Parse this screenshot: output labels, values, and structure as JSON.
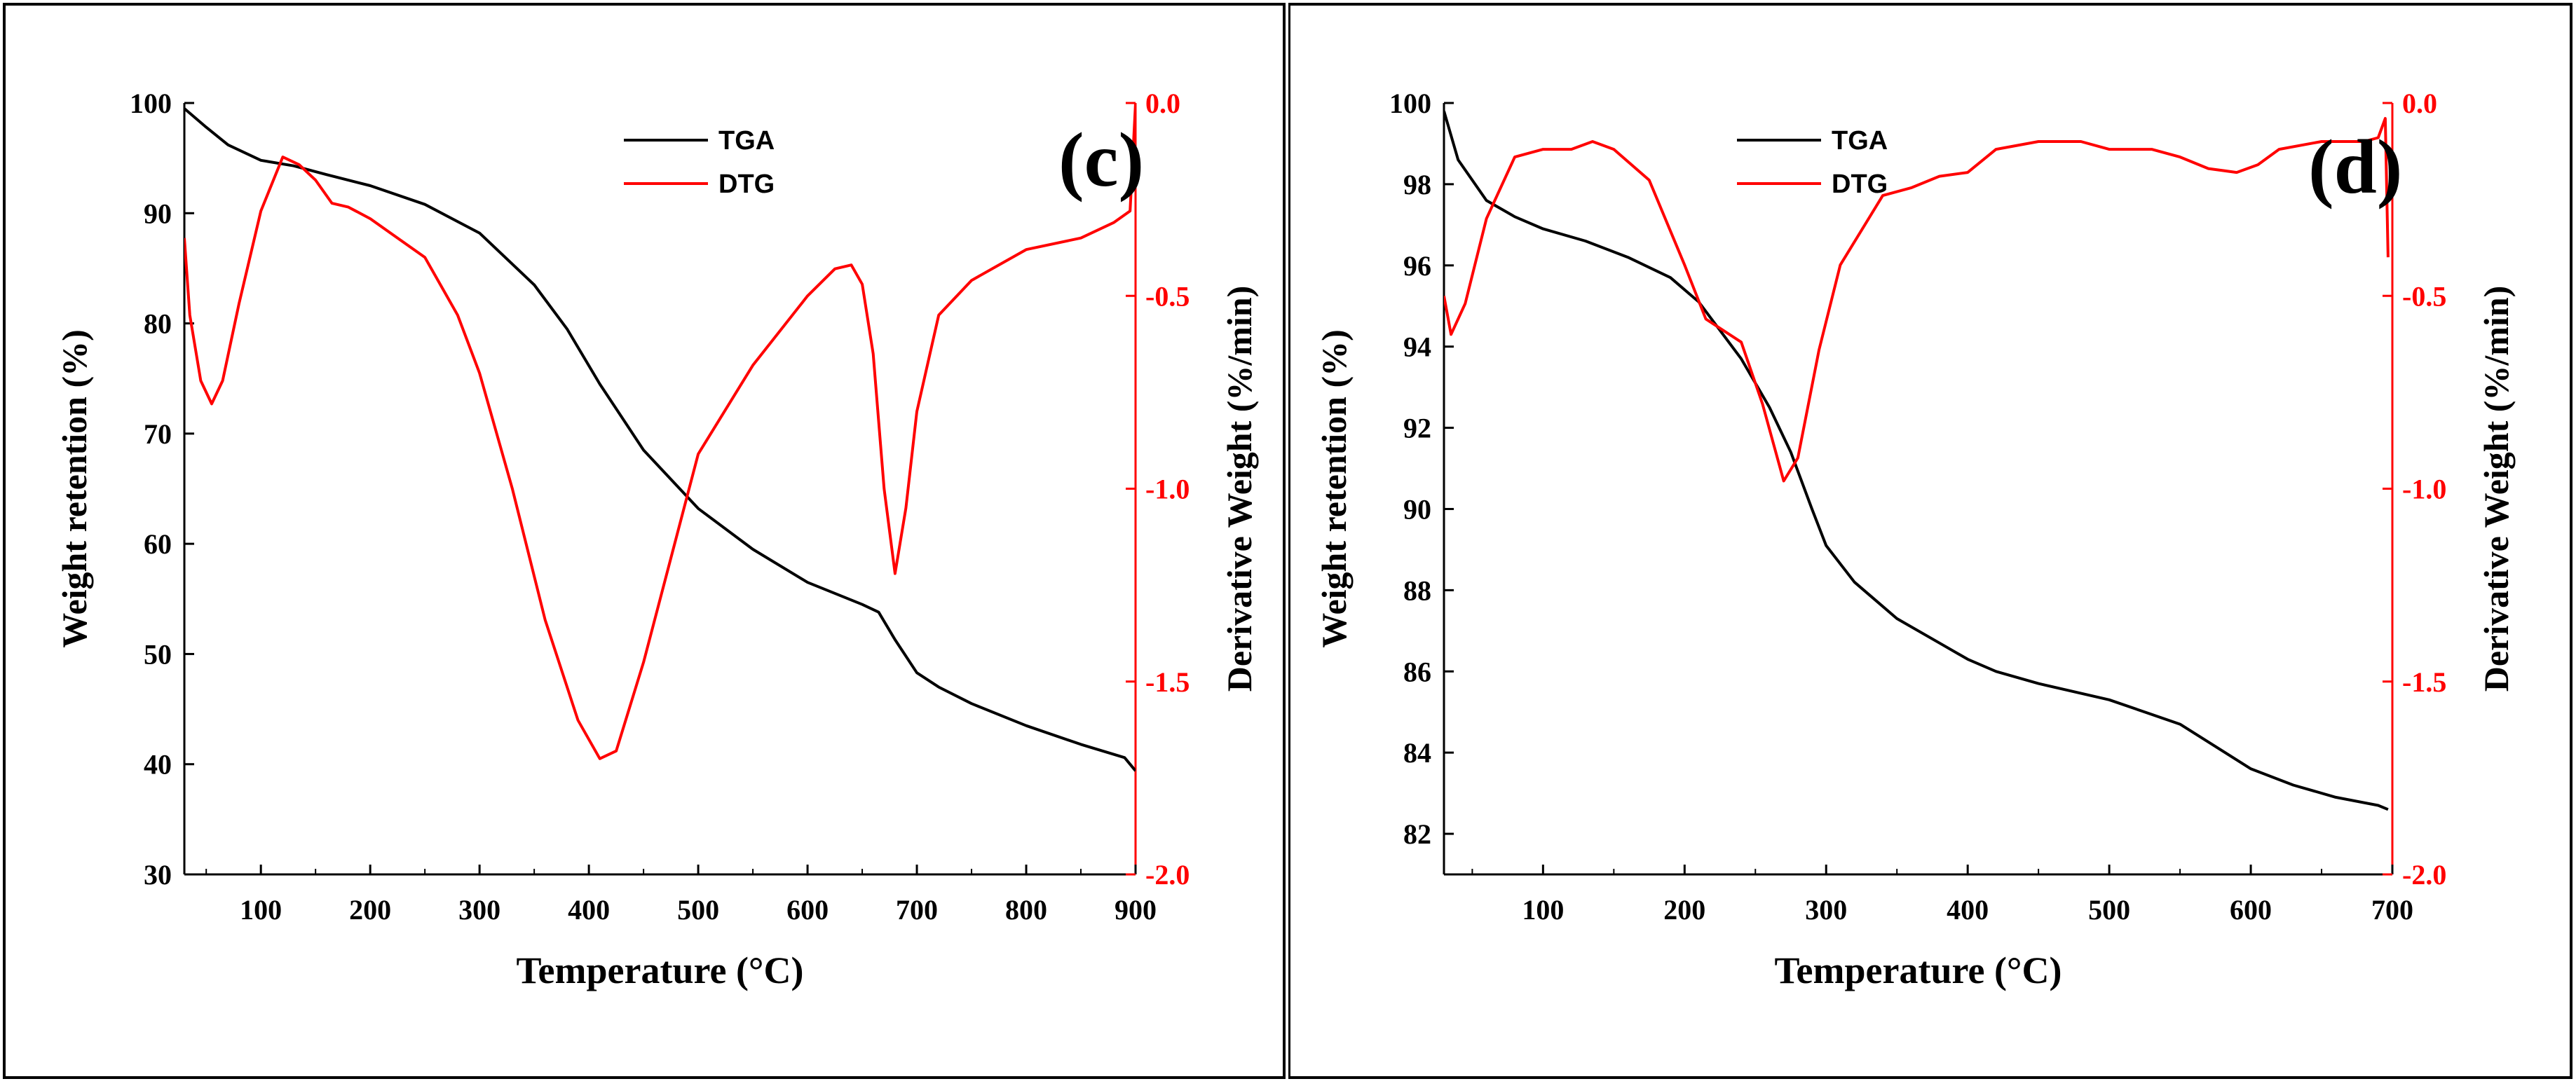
{
  "colors": {
    "tga": "#000000",
    "dtg": "#ff0000",
    "frame": "#000000"
  },
  "chart_data": [
    {
      "type": "line",
      "panel_label": "(c)",
      "xlabel": "Temperature (°C)",
      "ylabel": "Weight retention (%)",
      "y2label": "Derivative Weight (%/min)",
      "xlim": [
        30,
        900
      ],
      "ylim": [
        30,
        100
      ],
      "y2lim": [
        -2.0,
        0.0
      ],
      "xticks": [
        100,
        200,
        300,
        400,
        500,
        600,
        700,
        800,
        900
      ],
      "xtick_labels": [
        "100",
        "200",
        "300",
        "400",
        "500",
        "600",
        "700",
        "800",
        "900"
      ],
      "yticks": [
        30,
        40,
        50,
        60,
        70,
        80,
        90,
        100
      ],
      "ytick_labels": [
        "30",
        "40",
        "50",
        "60",
        "70",
        "80",
        "90",
        "100"
      ],
      "y2ticks": [
        0.0,
        -0.5,
        -1.0,
        -1.5,
        -2.0
      ],
      "y2tick_labels": [
        "0.0",
        "-0.5",
        "-1.0",
        "-1.5",
        "-2.0"
      ],
      "legend": {
        "position": "top-center",
        "entries": [
          "TGA",
          "DTG"
        ]
      },
      "series": [
        {
          "name": "TGA",
          "axis": "left",
          "x": [
            30,
            50,
            70,
            100,
            130,
            160,
            200,
            250,
            300,
            350,
            380,
            410,
            450,
            500,
            550,
            600,
            650,
            665,
            680,
            700,
            720,
            750,
            800,
            850,
            890,
            900
          ],
          "y": [
            99.5,
            97.8,
            96.2,
            94.8,
            94.3,
            93.5,
            92.5,
            90.8,
            88.2,
            83.5,
            79.5,
            74.5,
            68.5,
            63.2,
            59.5,
            56.5,
            54.5,
            53.8,
            51.3,
            48.3,
            47.0,
            45.5,
            43.5,
            41.8,
            40.6,
            39.4
          ]
        },
        {
          "name": "DTG",
          "axis": "right",
          "x": [
            30,
            35,
            45,
            55,
            65,
            80,
            100,
            120,
            135,
            150,
            165,
            180,
            200,
            220,
            250,
            280,
            300,
            330,
            360,
            390,
            410,
            425,
            450,
            500,
            550,
            600,
            625,
            640,
            650,
            660,
            670,
            680,
            690,
            700,
            720,
            750,
            800,
            850,
            880,
            895,
            900
          ],
          "y": [
            -0.35,
            -0.55,
            -0.72,
            -0.78,
            -0.72,
            -0.52,
            -0.28,
            -0.14,
            -0.16,
            -0.2,
            -0.26,
            -0.27,
            -0.3,
            -0.34,
            -0.4,
            -0.55,
            -0.7,
            -1.0,
            -1.34,
            -1.6,
            -1.7,
            -1.68,
            -1.45,
            -0.91,
            -0.68,
            -0.5,
            -0.43,
            -0.42,
            -0.47,
            -0.65,
            -1.0,
            -1.22,
            -1.05,
            -0.8,
            -0.55,
            -0.46,
            -0.38,
            -0.35,
            -0.31,
            -0.28,
            0.0
          ]
        }
      ]
    },
    {
      "type": "line",
      "panel_label": "(d)",
      "xlabel": "Temperature (°C)",
      "ylabel": "Weight retention (%)",
      "y2label": "Derivative Weight (%/min)",
      "xlim": [
        30,
        700
      ],
      "ylim": [
        81,
        100
      ],
      "y2lim": [
        -2.0,
        0.0
      ],
      "xticks": [
        100,
        200,
        300,
        400,
        500,
        600,
        700
      ],
      "xtick_labels": [
        "100",
        "200",
        "300",
        "400",
        "500",
        "600",
        "700"
      ],
      "yticks": [
        82,
        84,
        86,
        88,
        90,
        92,
        94,
        96,
        98,
        100
      ],
      "ytick_labels": [
        "82",
        "84",
        "86",
        "88",
        "90",
        "92",
        "94",
        "96",
        "98",
        "100"
      ],
      "y2ticks": [
        0.0,
        -0.5,
        -1.0,
        -1.5,
        -2.0
      ],
      "y2tick_labels": [
        "0.0",
        "-0.5",
        "-1.0",
        "-1.5",
        "-2.0"
      ],
      "legend": {
        "position": "top-center",
        "entries": [
          "TGA",
          "DTG"
        ]
      },
      "series": [
        {
          "name": "TGA",
          "axis": "left",
          "x": [
            30,
            40,
            60,
            80,
            100,
            130,
            160,
            190,
            210,
            240,
            260,
            275,
            290,
            300,
            320,
            350,
            380,
            400,
            420,
            450,
            500,
            550,
            600,
            630,
            660,
            690,
            697
          ],
          "y": [
            99.8,
            98.6,
            97.6,
            97.2,
            96.9,
            96.6,
            96.2,
            95.7,
            95.1,
            93.7,
            92.5,
            91.4,
            90.0,
            89.1,
            88.2,
            87.3,
            86.7,
            86.3,
            86.0,
            85.7,
            85.3,
            84.7,
            83.6,
            83.2,
            82.9,
            82.7,
            82.6
          ]
        },
        {
          "name": "DTG",
          "axis": "right",
          "x": [
            30,
            35,
            45,
            60,
            80,
            100,
            120,
            135,
            150,
            175,
            200,
            215,
            240,
            255,
            270,
            280,
            295,
            310,
            340,
            360,
            380,
            400,
            420,
            450,
            480,
            500,
            530,
            550,
            570,
            590,
            605,
            620,
            650,
            680,
            690,
            695,
            697
          ],
          "y": [
            -0.5,
            -0.6,
            -0.52,
            -0.3,
            -0.14,
            -0.12,
            -0.12,
            -0.1,
            -0.12,
            -0.2,
            -0.42,
            -0.56,
            -0.62,
            -0.78,
            -0.98,
            -0.92,
            -0.64,
            -0.42,
            -0.24,
            -0.22,
            -0.19,
            -0.18,
            -0.12,
            -0.1,
            -0.1,
            -0.12,
            -0.12,
            -0.14,
            -0.17,
            -0.18,
            -0.16,
            -0.12,
            -0.1,
            -0.1,
            -0.09,
            -0.04,
            -0.4
          ]
        }
      ]
    }
  ]
}
